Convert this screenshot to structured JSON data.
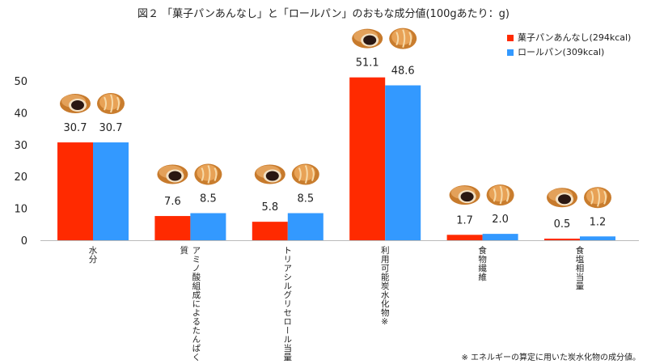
{
  "chart_data": {
    "type": "bar",
    "title": "図２ 「菓子パンあんなし」と「ロールパン」のおもな成分値(100gあたり：g)",
    "categories": [
      "水分",
      "アミノ酸組成によるたんぱく質",
      "トリアシルグリセロール当量",
      "利用可能炭水化物※",
      "食物繊維",
      "食塩相当量"
    ],
    "series": [
      {
        "name": "菓子パンあんなし(294kcal)",
        "color": "#ff2a00",
        "values": [
          30.7,
          7.6,
          5.8,
          51.1,
          1.7,
          0.5
        ],
        "labels": [
          "30.7",
          "7.6",
          "5.8",
          "51.1",
          "1.7",
          "0.5"
        ]
      },
      {
        "name": "ロールパン(309kcal)",
        "color": "#3399ff",
        "values": [
          30.7,
          8.5,
          8.5,
          48.6,
          2.0,
          1.2
        ],
        "labels": [
          "30.7",
          "8.5",
          "8.5",
          "48.6",
          "2.0",
          "1.2"
        ]
      }
    ],
    "yticks": [
      "0",
      "10",
      "20",
      "30",
      "40",
      "50"
    ],
    "ylim": [
      0,
      50
    ],
    "grid": false,
    "legend": "top-right",
    "footnote": "※ エネルギーの算定に用いた炭水化物の成分値。"
  }
}
